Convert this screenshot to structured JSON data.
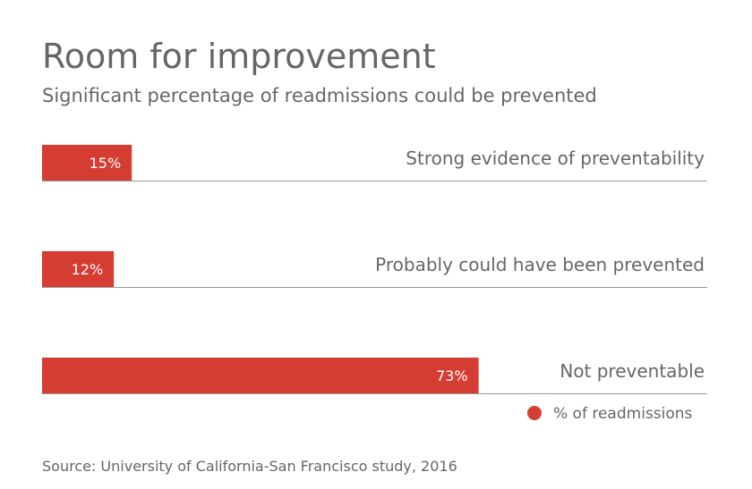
{
  "chart_data": {
    "type": "bar",
    "orientation": "horizontal",
    "title": "Room for improvement",
    "subtitle": "Significant percentage of readmissions could be prevented",
    "categories": [
      "Strong evidence of preventability",
      "Probably could have been prevented",
      "Not preventable"
    ],
    "series": [
      {
        "name": "% of readmissions",
        "values": [
          15,
          12,
          73
        ],
        "labels": [
          "15%",
          "12%",
          "73%"
        ]
      }
    ],
    "xlim": [
      0,
      100
    ],
    "grid": false,
    "legend": "bottom-right",
    "colors": {
      "bar": "#d63d32",
      "text": "#666666",
      "baseline": "#999999",
      "bar_label": "#ffffff"
    }
  },
  "source": "Source: University of California-San Francisco study, 2016"
}
